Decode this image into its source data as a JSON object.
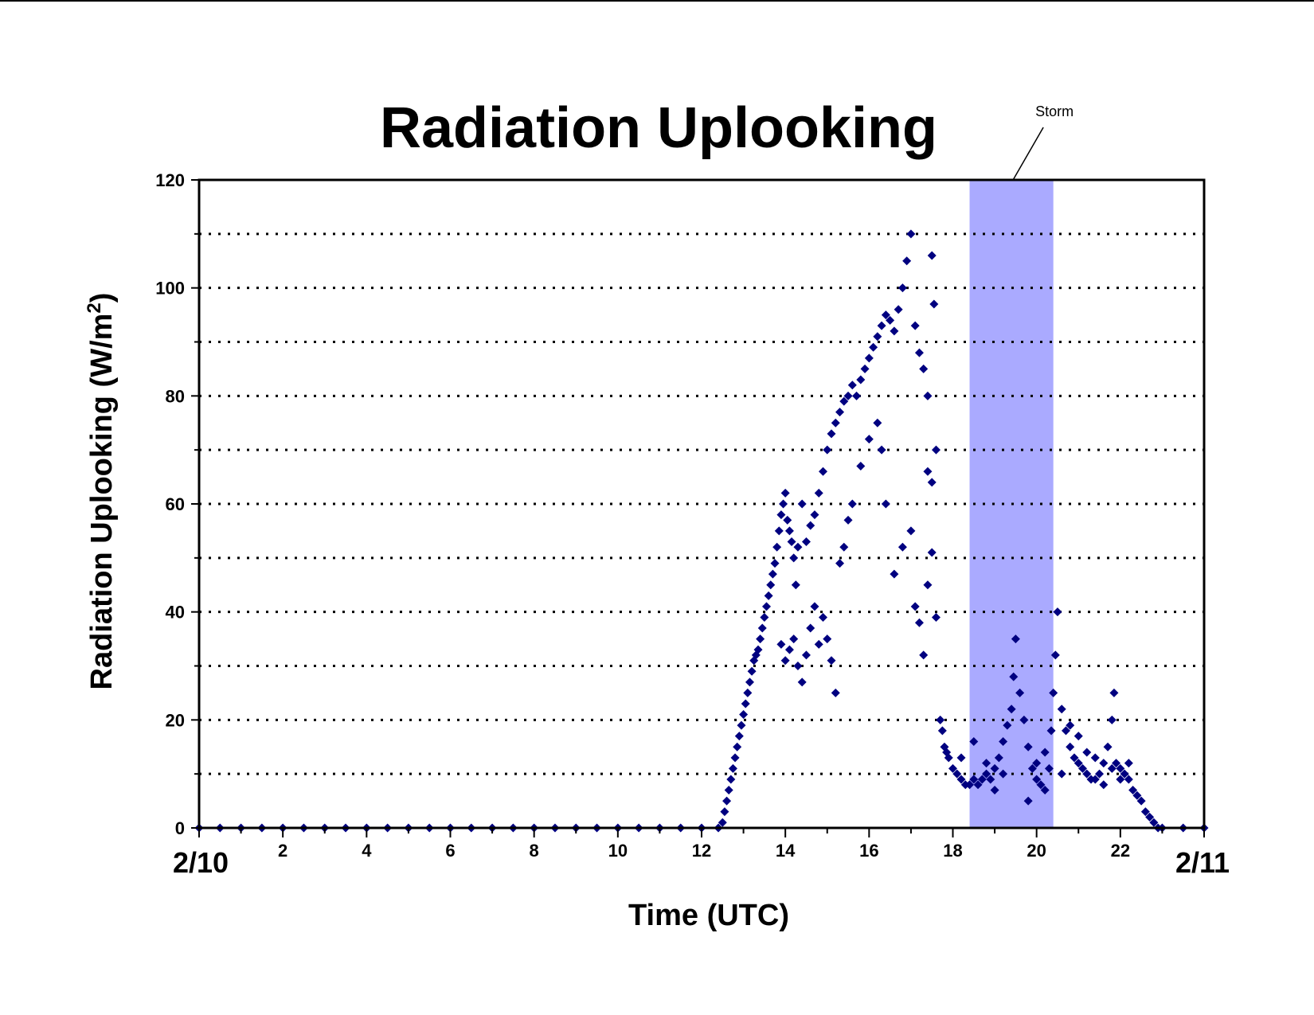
{
  "chart_data": {
    "type": "scatter",
    "title": "Radiation Uplooking",
    "xlabel": "Time (UTC)",
    "ylabel": "Radiation Uplooking (W/m",
    "ylabel_superscript": "2",
    "ylabel_close": ")",
    "xlim": [
      0,
      24
    ],
    "ylim": [
      0,
      120
    ],
    "x_ticks": [
      0,
      2,
      4,
      6,
      8,
      10,
      12,
      14,
      16,
      18,
      20,
      22,
      24
    ],
    "x_tick_labels": [
      "2",
      "4",
      "6",
      "8",
      "10",
      "12",
      "14",
      "16",
      "18",
      "20",
      "22"
    ],
    "y_ticks": [
      0,
      20,
      40,
      60,
      80,
      100,
      120
    ],
    "y_tick_labels": [
      "0",
      "20",
      "40",
      "60",
      "80",
      "100",
      "120"
    ],
    "gridlines_y": [
      10,
      20,
      30,
      40,
      50,
      60,
      70,
      80,
      90,
      100,
      110
    ],
    "grid": "dotted horizontal",
    "start_date_label": "2/10",
    "end_date_label": "2/11",
    "marker": "diamond",
    "marker_color": "#000080",
    "shaded_region": {
      "label": "Storm",
      "x_start": 18.4,
      "x_end": 20.4,
      "color": "#aaaaff"
    },
    "series": [
      {
        "points": [
          [
            0,
            0
          ],
          [
            0.5,
            0
          ],
          [
            1,
            0
          ],
          [
            1.5,
            0
          ],
          [
            2,
            0
          ],
          [
            2.5,
            0
          ],
          [
            3,
            0
          ],
          [
            3.5,
            0
          ],
          [
            4,
            0
          ],
          [
            4.5,
            0
          ],
          [
            5,
            0
          ],
          [
            5.5,
            0
          ],
          [
            6,
            0
          ],
          [
            6.5,
            0
          ],
          [
            7,
            0
          ],
          [
            7.5,
            0
          ],
          [
            8,
            0
          ],
          [
            8.5,
            0
          ],
          [
            9,
            0
          ],
          [
            9.5,
            0
          ],
          [
            10,
            0
          ],
          [
            10.5,
            0
          ],
          [
            11,
            0
          ],
          [
            11.5,
            0
          ],
          [
            12,
            0
          ],
          [
            12.4,
            0
          ],
          [
            12.5,
            1
          ],
          [
            12.55,
            3
          ],
          [
            12.6,
            5
          ],
          [
            12.65,
            7
          ],
          [
            12.7,
            9
          ],
          [
            12.75,
            11
          ],
          [
            12.8,
            13
          ],
          [
            12.85,
            15
          ],
          [
            12.9,
            17
          ],
          [
            12.95,
            19
          ],
          [
            13.0,
            21
          ],
          [
            13.05,
            23
          ],
          [
            13.1,
            25
          ],
          [
            13.15,
            27
          ],
          [
            13.2,
            29
          ],
          [
            13.25,
            31
          ],
          [
            13.3,
            32
          ],
          [
            13.35,
            33
          ],
          [
            13.4,
            35
          ],
          [
            13.45,
            37
          ],
          [
            13.5,
            39
          ],
          [
            13.55,
            41
          ],
          [
            13.6,
            43
          ],
          [
            13.65,
            45
          ],
          [
            13.7,
            47
          ],
          [
            13.75,
            49
          ],
          [
            13.8,
            52
          ],
          [
            13.85,
            55
          ],
          [
            13.9,
            58
          ],
          [
            13.95,
            60
          ],
          [
            14.0,
            62
          ],
          [
            14.05,
            57
          ],
          [
            14.1,
            55
          ],
          [
            14.15,
            53
          ],
          [
            14.2,
            50
          ],
          [
            14.25,
            45
          ],
          [
            14.3,
            52
          ],
          [
            14.4,
            60
          ],
          [
            14.5,
            53
          ],
          [
            14.6,
            56
          ],
          [
            14.7,
            58
          ],
          [
            14.8,
            62
          ],
          [
            14.9,
            66
          ],
          [
            15.0,
            70
          ],
          [
            15.1,
            73
          ],
          [
            15.2,
            75
          ],
          [
            15.3,
            77
          ],
          [
            15.4,
            79
          ],
          [
            15.5,
            80
          ],
          [
            15.6,
            82
          ],
          [
            15.7,
            80
          ],
          [
            15.8,
            83
          ],
          [
            15.9,
            85
          ],
          [
            16.0,
            87
          ],
          [
            16.1,
            89
          ],
          [
            16.2,
            91
          ],
          [
            16.3,
            93
          ],
          [
            16.4,
            95
          ],
          [
            16.5,
            94
          ],
          [
            16.6,
            92
          ],
          [
            16.7,
            96
          ],
          [
            16.8,
            100
          ],
          [
            16.9,
            105
          ],
          [
            17.0,
            110
          ],
          [
            17.1,
            93
          ],
          [
            17.2,
            88
          ],
          [
            17.3,
            85
          ],
          [
            17.4,
            80
          ],
          [
            17.5,
            106
          ],
          [
            17.55,
            97
          ],
          [
            13.9,
            34
          ],
          [
            14.0,
            31
          ],
          [
            14.1,
            33
          ],
          [
            14.2,
            35
          ],
          [
            14.3,
            30
          ],
          [
            14.4,
            27
          ],
          [
            14.5,
            32
          ],
          [
            14.6,
            37
          ],
          [
            14.7,
            41
          ],
          [
            14.8,
            34
          ],
          [
            14.9,
            39
          ],
          [
            15.0,
            35
          ],
          [
            15.1,
            31
          ],
          [
            15.2,
            25
          ],
          [
            15.3,
            49
          ],
          [
            15.4,
            52
          ],
          [
            15.5,
            57
          ],
          [
            15.6,
            60
          ],
          [
            15.8,
            67
          ],
          [
            16.0,
            72
          ],
          [
            16.2,
            75
          ],
          [
            16.3,
            70
          ],
          [
            16.4,
            60
          ],
          [
            16.6,
            47
          ],
          [
            16.8,
            52
          ],
          [
            17.0,
            55
          ],
          [
            17.1,
            41
          ],
          [
            17.2,
            38
          ],
          [
            17.3,
            32
          ],
          [
            17.4,
            45
          ],
          [
            17.5,
            51
          ],
          [
            17.6,
            39
          ],
          [
            17.4,
            66
          ],
          [
            17.5,
            64
          ],
          [
            17.6,
            70
          ],
          [
            17.7,
            20
          ],
          [
            17.75,
            18
          ],
          [
            17.8,
            15
          ],
          [
            17.85,
            14
          ],
          [
            17.9,
            13
          ],
          [
            18.0,
            11
          ],
          [
            18.1,
            10
          ],
          [
            18.2,
            9
          ],
          [
            18.3,
            8
          ],
          [
            18.4,
            8
          ],
          [
            18.5,
            9
          ],
          [
            18.6,
            8
          ],
          [
            18.7,
            9
          ],
          [
            18.8,
            10
          ],
          [
            18.9,
            9
          ],
          [
            19.0,
            11
          ],
          [
            19.1,
            13
          ],
          [
            19.2,
            16
          ],
          [
            19.3,
            19
          ],
          [
            19.4,
            22
          ],
          [
            19.45,
            28
          ],
          [
            19.5,
            35
          ],
          [
            19.6,
            25
          ],
          [
            19.7,
            20
          ],
          [
            19.8,
            15
          ],
          [
            19.9,
            11
          ],
          [
            20.0,
            9
          ],
          [
            20.1,
            8
          ],
          [
            20.2,
            7
          ],
          [
            20.3,
            11
          ],
          [
            20.35,
            18
          ],
          [
            20.4,
            25
          ],
          [
            20.45,
            32
          ],
          [
            20.5,
            40
          ],
          [
            20.6,
            22
          ],
          [
            20.7,
            18
          ],
          [
            20.8,
            15
          ],
          [
            20.9,
            13
          ],
          [
            21.0,
            12
          ],
          [
            21.1,
            11
          ],
          [
            21.2,
            10
          ],
          [
            21.3,
            9
          ],
          [
            21.4,
            9
          ],
          [
            21.5,
            10
          ],
          [
            21.6,
            12
          ],
          [
            21.7,
            15
          ],
          [
            21.8,
            20
          ],
          [
            21.85,
            25
          ],
          [
            21.9,
            12
          ],
          [
            22.0,
            11
          ],
          [
            22.1,
            10
          ],
          [
            22.2,
            9
          ],
          [
            22.3,
            7
          ],
          [
            22.4,
            6
          ],
          [
            22.5,
            5
          ],
          [
            22.6,
            3
          ],
          [
            22.7,
            2
          ],
          [
            22.8,
            1
          ],
          [
            22.9,
            0
          ],
          [
            18.2,
            13
          ],
          [
            18.5,
            16
          ],
          [
            18.8,
            12
          ],
          [
            19.0,
            7
          ],
          [
            19.2,
            10
          ],
          [
            19.8,
            5
          ],
          [
            20.0,
            12
          ],
          [
            20.2,
            14
          ],
          [
            20.6,
            10
          ],
          [
            20.8,
            19
          ],
          [
            21.0,
            17
          ],
          [
            21.2,
            14
          ],
          [
            21.4,
            13
          ],
          [
            21.6,
            8
          ],
          [
            21.8,
            11
          ],
          [
            22.0,
            9
          ],
          [
            22.2,
            12
          ],
          [
            23,
            0
          ],
          [
            23.5,
            0
          ],
          [
            24,
            0
          ]
        ]
      }
    ]
  }
}
